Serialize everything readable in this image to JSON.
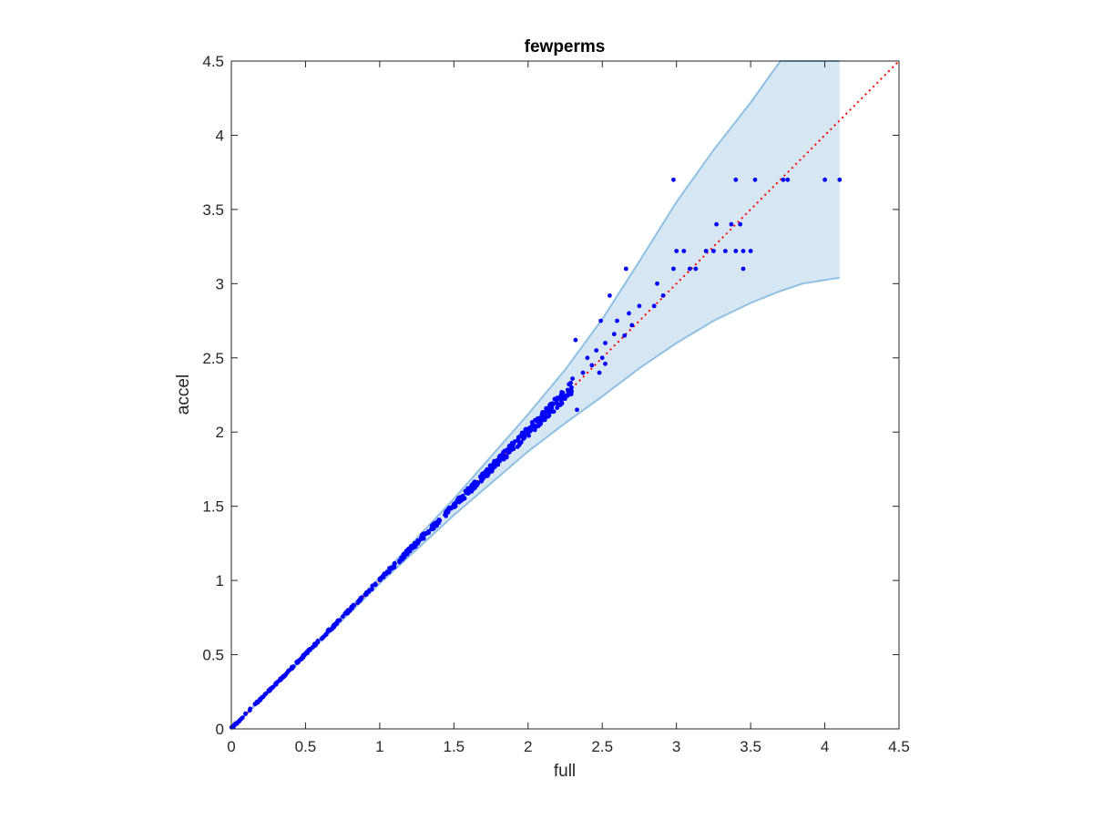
{
  "chart_data": {
    "type": "scatter",
    "title": "fewperms",
    "xlabel": "full",
    "ylabel": "accel",
    "xlim": [
      0,
      4.5
    ],
    "ylim": [
      0,
      4.5
    ],
    "xticks": [
      "0",
      "0.5",
      "1",
      "1.5",
      "2",
      "2.5",
      "3",
      "3.5",
      "4",
      "4.5"
    ],
    "yticks": [
      "0",
      "0.5",
      "1",
      "1.5",
      "2",
      "2.5",
      "3",
      "3.5",
      "4",
      "4.5"
    ],
    "grid": false,
    "colors": {
      "points": "#0000ff",
      "reference_line": "#ff0000",
      "band_fill": "#d6e6f2",
      "band_edge": "#8fc0e3",
      "axes": "#262626"
    },
    "reference_line": {
      "x": [
        0,
        4.5
      ],
      "y": [
        0,
        4.5
      ],
      "style": "dotted"
    },
    "band": {
      "x": [
        0,
        0.5,
        1.0,
        1.5,
        2.0,
        2.25,
        2.5,
        2.75,
        3.0,
        3.25,
        3.5,
        3.7,
        3.85,
        4.1
      ],
      "upper": [
        0,
        0.51,
        1.02,
        1.55,
        2.12,
        2.42,
        2.76,
        3.15,
        3.55,
        3.9,
        4.22,
        4.5,
        4.5,
        4.5
      ],
      "lower": [
        0,
        0.49,
        0.98,
        1.44,
        1.87,
        2.06,
        2.24,
        2.43,
        2.6,
        2.75,
        2.87,
        2.95,
        3.0,
        3.04
      ]
    },
    "points": {
      "x": [
        2.98,
        3.4,
        3.53,
        3.72,
        3.75,
        4.0,
        4.1,
        3.2,
        3.25,
        3.4,
        3.45,
        3.5,
        3.43,
        3.37,
        3.27,
        3.13,
        3.09,
        3.45,
        3.33,
        3.0,
        3.05,
        2.98,
        2.91,
        2.87,
        2.85,
        2.75,
        2.7,
        2.68,
        2.66,
        2.6,
        2.55,
        2.65,
        2.58,
        2.52,
        2.49,
        2.46,
        2.5,
        2.43,
        2.4,
        2.37,
        2.32,
        2.3,
        2.28,
        2.52,
        2.48,
        2.33
      ],
      "y": [
        3.7,
        3.7,
        3.7,
        3.7,
        3.7,
        3.7,
        3.7,
        3.22,
        3.22,
        3.22,
        3.22,
        3.22,
        3.4,
        3.4,
        3.4,
        3.1,
        3.1,
        3.1,
        3.22,
        3.22,
        3.22,
        3.1,
        2.92,
        3.0,
        2.85,
        2.85,
        2.72,
        2.8,
        3.1,
        2.75,
        2.92,
        2.65,
        2.66,
        2.6,
        2.75,
        2.55,
        2.5,
        2.45,
        2.5,
        2.4,
        2.62,
        2.36,
        2.32,
        2.46,
        2.4,
        2.15
      ],
      "dense_region": {
        "x_start": 0,
        "x_end": 2.3,
        "approx_count": 520
      }
    }
  }
}
